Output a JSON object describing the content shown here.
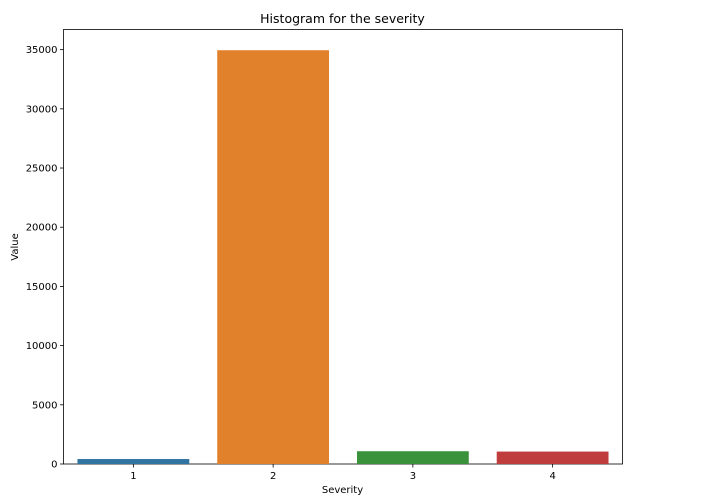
{
  "chart_data": {
    "type": "bar",
    "title": "Histogram for the severity",
    "xlabel": "Severity",
    "ylabel": "Value",
    "categories": [
      "1",
      "2",
      "3",
      "4"
    ],
    "values": [
      420,
      34950,
      1080,
      1050
    ],
    "ylim": [
      0,
      36700
    ],
    "yticks": [
      0,
      5000,
      10000,
      15000,
      20000,
      25000,
      30000,
      35000
    ],
    "grid": false,
    "legend": "none",
    "colors": [
      "#3274a1",
      "#e1812c",
      "#3a923a",
      "#c03d3e"
    ]
  }
}
